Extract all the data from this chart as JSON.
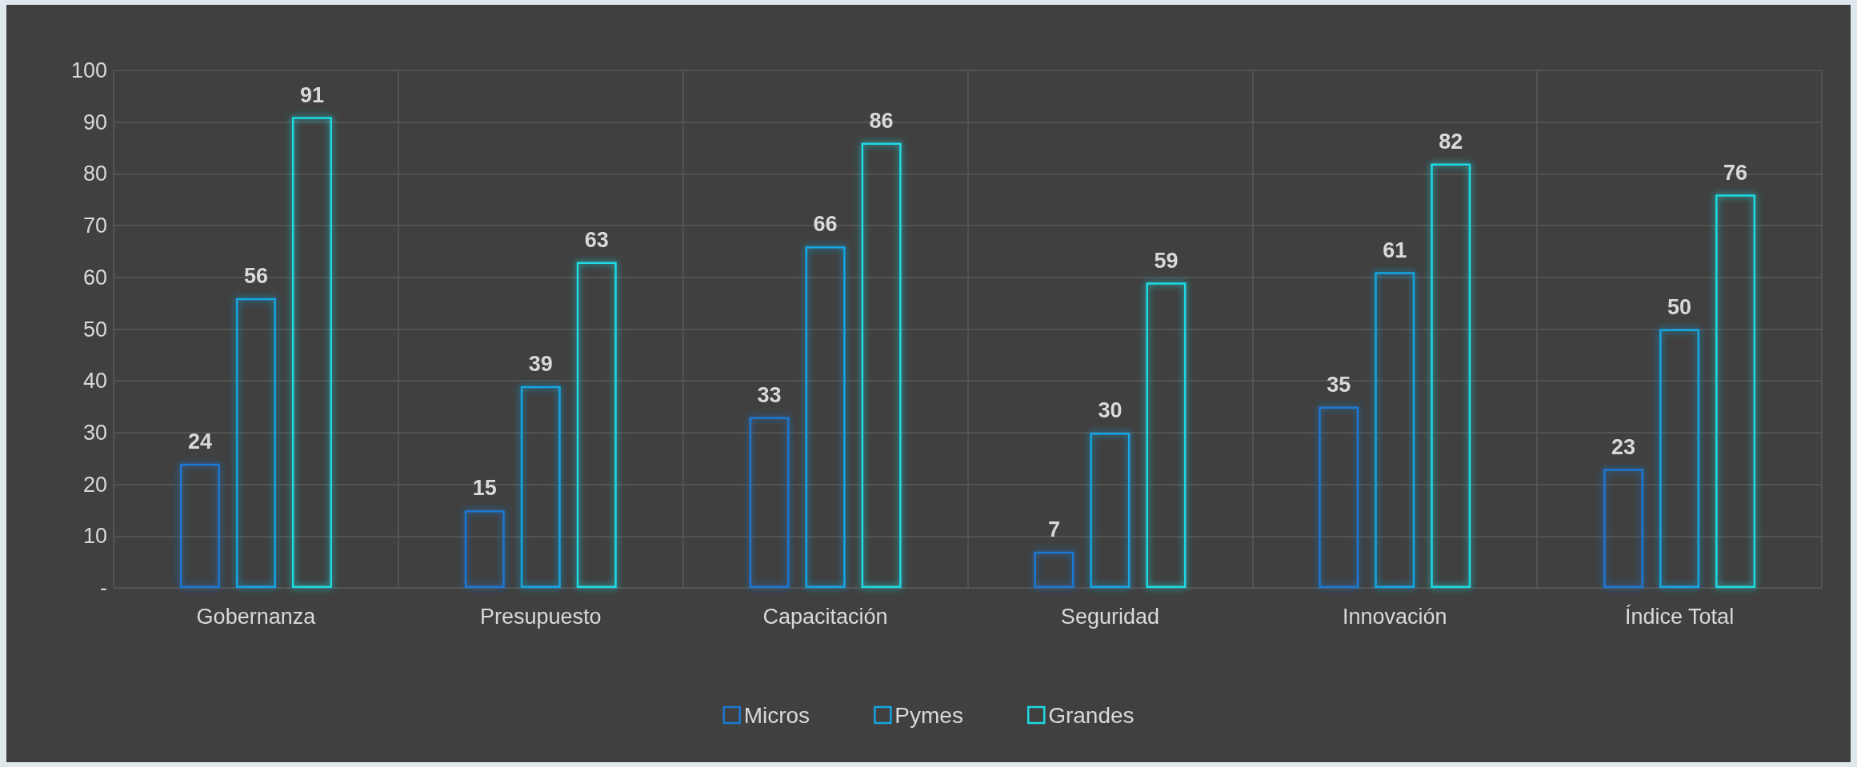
{
  "chart_data": {
    "type": "bar",
    "categories": [
      "Gobernanza",
      "Presupuesto",
      "Capacitación",
      "Seguridad",
      "Innovación",
      "Índice Total"
    ],
    "series": [
      {
        "name": "Micros",
        "color": "#1a78d2",
        "values": [
          24,
          15,
          33,
          7,
          35,
          23
        ]
      },
      {
        "name": "Pymes",
        "color": "#12a6e2",
        "values": [
          56,
          39,
          66,
          30,
          61,
          50
        ]
      },
      {
        "name": "Grandes",
        "color": "#1cdbe2",
        "values": [
          91,
          63,
          86,
          59,
          82,
          76
        ]
      }
    ],
    "ylim": [
      0,
      100
    ],
    "yticks": [
      {
        "value": 0,
        "label": "-"
      },
      10,
      20,
      30,
      40,
      50,
      60,
      70,
      80,
      90,
      100
    ],
    "grid": true,
    "legend": "bottom",
    "data_labels": true
  }
}
